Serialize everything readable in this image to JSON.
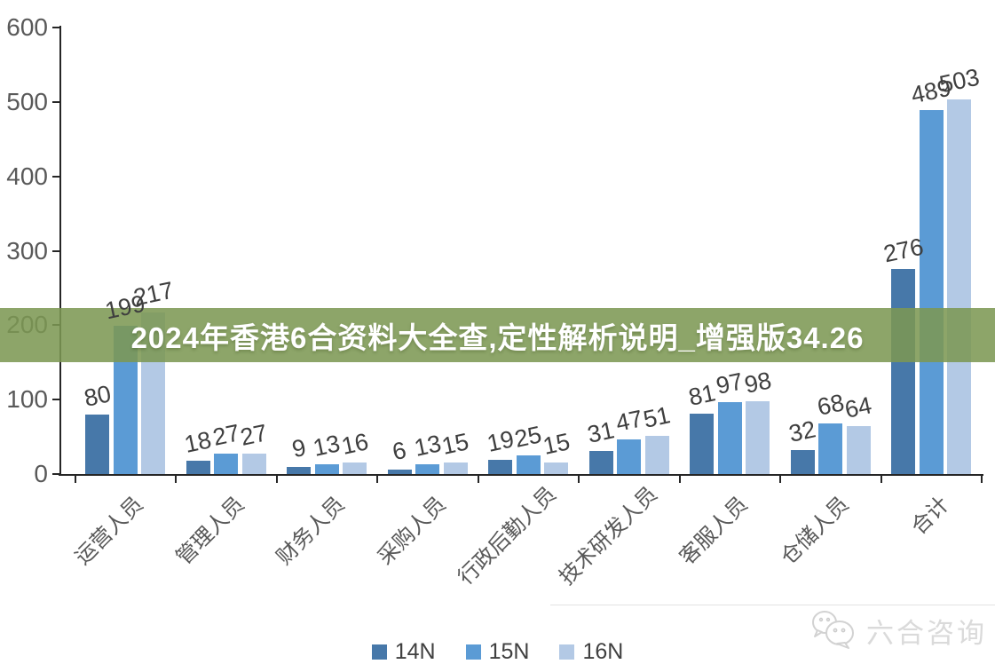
{
  "banner": {
    "text": "2024年香港6合资料大全查,定性解析说明_增强版34.26",
    "bg_color_rgba": "rgba(124,152,83,0.87)"
  },
  "chart_data": {
    "type": "bar",
    "title": "",
    "xlabel": "",
    "ylabel": "",
    "categories": [
      "运营人员",
      "管理人员",
      "财务人员",
      "采购人员",
      "行政后勤人员",
      "技术研发人员",
      "客服人员",
      "仓储人员",
      "合计"
    ],
    "series": [
      {
        "name": "14N",
        "color": "#4778a9",
        "values": [
          80,
          18,
          9,
          6,
          19,
          31,
          81,
          32,
          276
        ]
      },
      {
        "name": "15N",
        "color": "#5b9bd5",
        "values": [
          199,
          27,
          13,
          13,
          25,
          47,
          97,
          68,
          489
        ]
      },
      {
        "name": "16N",
        "color": "#b3c9e5",
        "values": [
          217,
          27,
          16,
          15,
          15,
          51,
          98,
          64,
          503
        ]
      }
    ],
    "ylim": [
      0,
      600
    ],
    "yticks": [
      0,
      100,
      200,
      300,
      400,
      500,
      600
    ],
    "grid": false,
    "legend_position": "bottom",
    "data_labels": true,
    "axis_color": "#262626",
    "tick_label_color": "#595959",
    "value_label_color": "#3f3f3f"
  },
  "logo": {
    "text": "六合咨询",
    "icon": "chat-bubbles-icon"
  }
}
